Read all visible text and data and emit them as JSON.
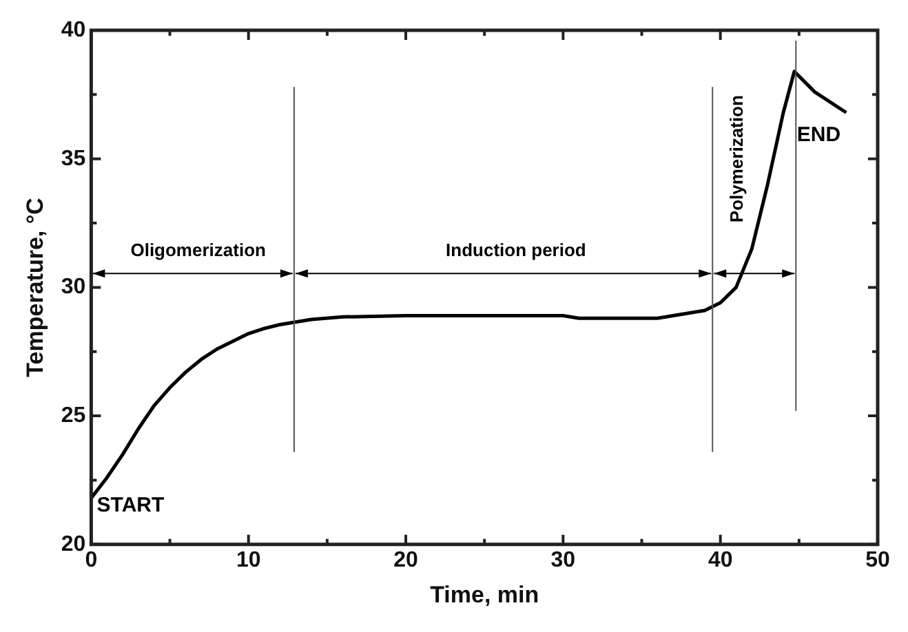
{
  "chart_data": {
    "type": "line",
    "xlabel": "Time, min",
    "ylabel": "Temperature, °C",
    "xlim": [
      0,
      50
    ],
    "xticks": [
      0,
      10,
      20,
      30,
      40,
      50
    ],
    "ylim": [
      20,
      40
    ],
    "yticks": [
      20,
      25,
      30,
      35,
      40
    ],
    "grid": false,
    "legend": false,
    "marker": "none",
    "line_style": "solid",
    "series": [
      {
        "color": "#000000",
        "x": [
          0,
          1,
          2,
          3,
          4,
          5,
          6,
          7,
          8,
          9,
          10,
          11,
          12,
          13,
          14,
          16,
          20,
          30,
          31,
          36,
          37,
          38,
          39,
          40,
          41,
          42,
          43,
          44,
          44.7,
          46,
          48
        ],
        "values": [
          21.8,
          22.6,
          23.5,
          24.5,
          25.4,
          26.1,
          26.7,
          27.2,
          27.6,
          27.9,
          28.2,
          28.4,
          28.55,
          28.65,
          28.75,
          28.85,
          28.9,
          28.9,
          28.8,
          28.8,
          28.9,
          29.0,
          29.1,
          29.4,
          30.0,
          31.5,
          34.0,
          36.8,
          38.4,
          37.6,
          36.8
        ]
      }
    ],
    "ref_lines": [
      {
        "axis": "x",
        "value": 12.9,
        "color": "#555555"
      },
      {
        "axis": "x",
        "value": 39.5,
        "color": "#555555"
      },
      {
        "axis": "x",
        "value": 44.8,
        "color": "#555555"
      }
    ],
    "annotations": [
      "Oligomerization",
      "Induction period",
      "Polymerization",
      "START",
      "END"
    ]
  }
}
